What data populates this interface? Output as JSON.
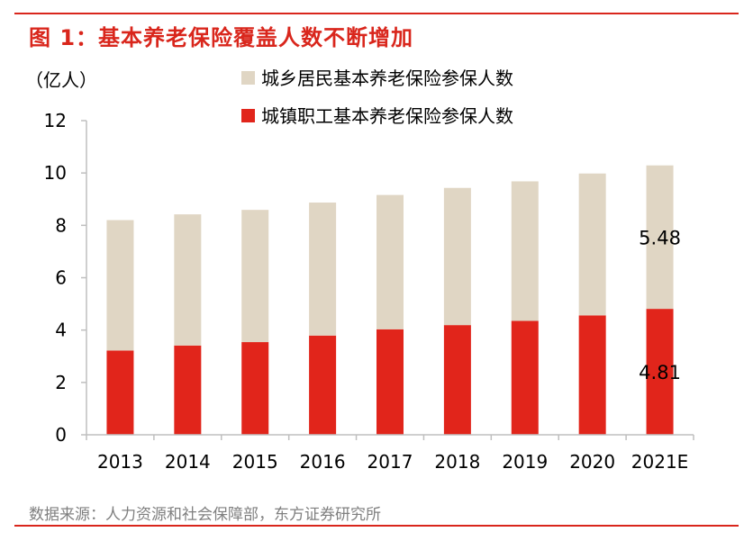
{
  "header": {
    "title": "图 1：基本养老保险覆盖人数不断增加"
  },
  "footer": {
    "source": "数据来源：人力资源和社会保障部，东方证券研究所"
  },
  "colors": {
    "accent": "#d9261c",
    "series_urban_rural": "#e0d6c4",
    "series_employee": "#e1251b",
    "axis": "#bfbfbf",
    "source_text": "#7f7f7f"
  },
  "chart_data": {
    "type": "bar",
    "stacked": true,
    "title": "",
    "unit_label": "（亿人）",
    "xlabel": "",
    "ylabel": "",
    "ylim": [
      0,
      12
    ],
    "yticks": [
      0,
      2,
      4,
      6,
      8,
      10,
      12
    ],
    "categories": [
      "2013",
      "2014",
      "2015",
      "2016",
      "2017",
      "2018",
      "2019",
      "2020",
      "2021E"
    ],
    "legend_position": "top-center",
    "grid": false,
    "series": [
      {
        "name": "城镇职工基本养老保险参保人数",
        "color": "#e1251b",
        "values": [
          3.22,
          3.41,
          3.54,
          3.79,
          4.03,
          4.19,
          4.35,
          4.56,
          4.81
        ]
      },
      {
        "name": "城乡居民基本养老保险参保人数",
        "color": "#e0d6c4",
        "values": [
          4.98,
          5.01,
          5.05,
          5.08,
          5.13,
          5.24,
          5.33,
          5.42,
          5.48
        ]
      }
    ],
    "data_labels": [
      {
        "category": "2021E",
        "series": "城乡居民基本养老保险参保人数",
        "text": "5.48"
      },
      {
        "category": "2021E",
        "series": "城镇职工基本养老保险参保人数",
        "text": "4.81"
      }
    ]
  }
}
